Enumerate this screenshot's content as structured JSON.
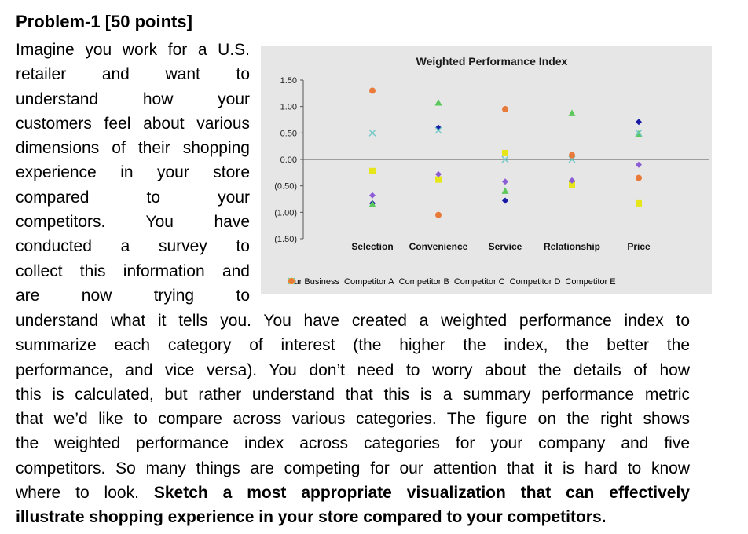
{
  "problem_title": "Problem-1 [50 points]",
  "left_lines": [
    "Imagine you work for a U.S.",
    "retailer and want to",
    "understand how your",
    "customers feel about various",
    "dimensions of their shopping",
    "experience in your store",
    "compared to your",
    "competitors. You have",
    "conducted a survey to",
    "collect this information and",
    "are now trying to"
  ],
  "full_lines": [
    "understand what it tells you. You have created a weighted performance index to",
    "summarize each category of interest (the higher the index, the better the",
    "performance, and vice versa). You don’t need to worry about the details of how",
    "this is calculated, but rather understand that this is a summary performance metric",
    "that we’d like to compare across various categories. The figure on the right shows",
    "the weighted performance index across categories for your company and five",
    "competitors. So many things are competing for our attention that it is hard to know"
  ],
  "line_18_normal": "where to look. ",
  "line_18_bold": "Sketch a most appropriate visualization that can effectively",
  "line_19_bold": "illustrate shopping experience in your store compared to your competitors.",
  "chart_data": {
    "type": "scatter",
    "title": "Weighted Performance Index",
    "xlabel": "",
    "ylabel": "",
    "categories": [
      "Selection",
      "Convenience",
      "Service",
      "Relationship",
      "Price"
    ],
    "ylim": [
      -1.5,
      1.5
    ],
    "yticks": [
      1.5,
      1.0,
      0.5,
      0.0,
      -0.5,
      -1.0,
      -1.5
    ],
    "ytick_labels": [
      "1.50",
      "1.00",
      "0.50",
      "0.00",
      "(0.50)",
      "(1.00)",
      "(1.50)"
    ],
    "legend_position": "bottom",
    "series": [
      {
        "name": "Our Business",
        "marker": "diamond",
        "color": "#1a1aa6",
        "values": [
          -0.83,
          0.6,
          -0.78,
          -0.42,
          0.71
        ]
      },
      {
        "name": "Competitor A",
        "marker": "triangle",
        "color": "#5cc85c",
        "values": [
          -0.85,
          1.07,
          -0.6,
          0.87,
          0.48
        ]
      },
      {
        "name": "Competitor B",
        "marker": "square",
        "color": "#e6e61a",
        "values": [
          -0.22,
          -0.38,
          0.12,
          -0.48,
          -0.83
        ]
      },
      {
        "name": "Competitor C",
        "marker": "diamond",
        "color": "#8c5cd6",
        "values": [
          -0.68,
          -0.28,
          -0.42,
          -0.4,
          -0.1
        ]
      },
      {
        "name": "Competitor D",
        "marker": "x",
        "color": "#6cc6c6",
        "values": [
          0.5,
          0.55,
          0.0,
          0.0,
          0.5
        ]
      },
      {
        "name": "Competitor E",
        "marker": "circle",
        "color": "#e87a3a",
        "values": [
          1.3,
          -1.05,
          0.95,
          0.08,
          -0.35
        ]
      }
    ]
  }
}
